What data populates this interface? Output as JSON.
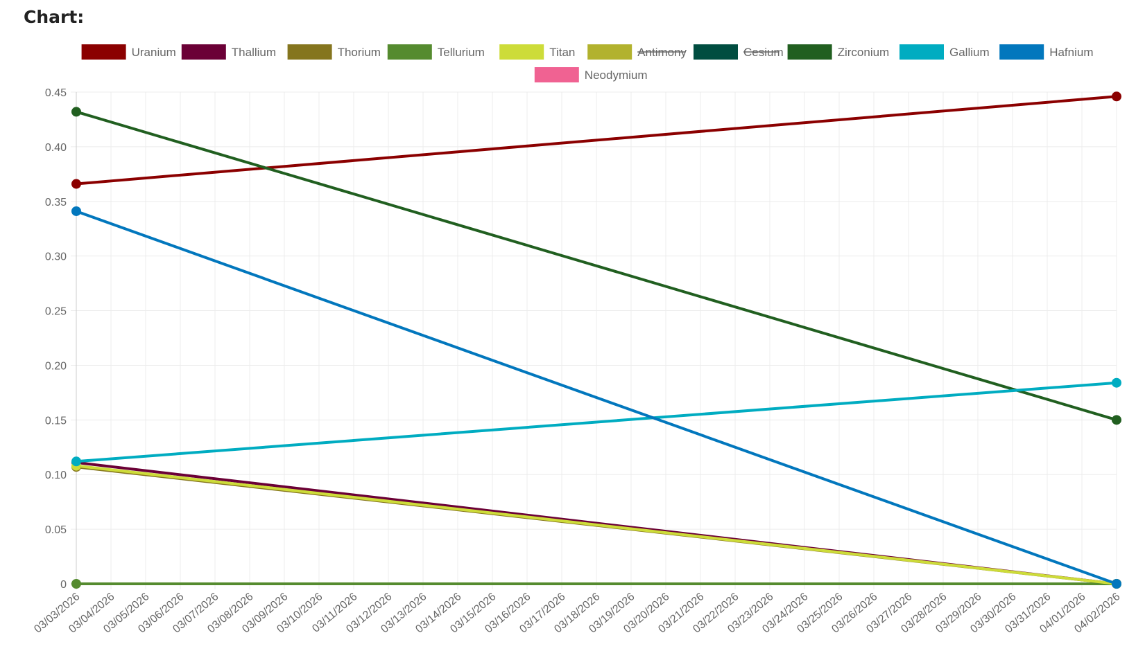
{
  "header": {
    "title": "Chart:"
  },
  "chart_data": {
    "type": "line",
    "title": "",
    "xlabel": "",
    "ylabel": "",
    "ylim": [
      0,
      0.45
    ],
    "yticks": [
      "0",
      "0.05",
      "0.10",
      "0.15",
      "0.20",
      "0.25",
      "0.30",
      "0.35",
      "0.40",
      "0.45"
    ],
    "x": [
      "03/03/2026",
      "03/04/2026",
      "03/05/2026",
      "03/06/2026",
      "03/07/2026",
      "03/08/2026",
      "03/09/2026",
      "03/10/2026",
      "03/11/2026",
      "03/12/2026",
      "03/13/2026",
      "03/14/2026",
      "03/15/2026",
      "03/16/2026",
      "03/17/2026",
      "03/18/2026",
      "03/19/2026",
      "03/20/2026",
      "03/21/2026",
      "03/22/2026",
      "03/23/2026",
      "03/24/2026",
      "03/25/2026",
      "03/26/2026",
      "03/27/2026",
      "03/28/2026",
      "03/29/2026",
      "03/30/2026",
      "03/31/2026",
      "04/01/2026",
      "04/02/2026"
    ],
    "grid": true,
    "legend_position": "top",
    "series": [
      {
        "name": "Uranium",
        "color": "#8b0000",
        "hidden": false,
        "points": [
          [
            "03/03/2026",
            0.366
          ],
          [
            "04/02/2026",
            0.446
          ]
        ]
      },
      {
        "name": "Thallium",
        "color": "#6b0036",
        "hidden": false,
        "points": [
          [
            "03/03/2026",
            0.111
          ],
          [
            "04/02/2026",
            0.0
          ]
        ]
      },
      {
        "name": "Thorium",
        "color": "#85751e",
        "hidden": false,
        "points": [
          [
            "03/03/2026",
            0.107
          ],
          [
            "04/02/2026",
            0.0
          ]
        ]
      },
      {
        "name": "Tellurium",
        "color": "#558b2f",
        "hidden": false,
        "points": [
          [
            "03/03/2026",
            0.0
          ],
          [
            "04/02/2026",
            0.0
          ]
        ]
      },
      {
        "name": "Titan",
        "color": "#cddc39",
        "hidden": false,
        "points": [
          [
            "03/03/2026",
            0.108
          ],
          [
            "04/02/2026",
            0.0
          ]
        ]
      },
      {
        "name": "Antimony",
        "color": "#b2b22e",
        "hidden": true,
        "points": []
      },
      {
        "name": "Cesium",
        "color": "#004d40",
        "hidden": true,
        "points": []
      },
      {
        "name": "Zirconium",
        "color": "#215f20",
        "hidden": false,
        "points": [
          [
            "03/03/2026",
            0.432
          ],
          [
            "04/02/2026",
            0.15
          ]
        ]
      },
      {
        "name": "Gallium",
        "color": "#00acc1",
        "hidden": false,
        "points": [
          [
            "03/03/2026",
            0.112
          ],
          [
            "04/02/2026",
            0.184
          ]
        ]
      },
      {
        "name": "Hafnium",
        "color": "#0277bd",
        "hidden": false,
        "points": [
          [
            "03/03/2026",
            0.341
          ],
          [
            "04/02/2026",
            0.0
          ]
        ]
      },
      {
        "name": "Neodymium",
        "color": "#f06292",
        "hidden": false,
        "points": []
      }
    ]
  }
}
